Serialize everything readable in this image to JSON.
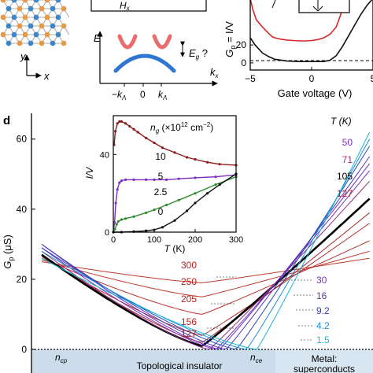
{
  "panels": {
    "lattice": {
      "y_axis_label": "y",
      "x_axis_label": "x"
    },
    "band": {
      "top_box_text": "H",
      "top_box_subscript": "x",
      "energy_label": "E",
      "gap_label": "E",
      "gap_subscript": "g",
      "gap_suffix": " ?",
      "k_label": "k",
      "k_subscript": "x",
      "tick_neg": "−k",
      "tick_zero": "0",
      "tick_pos": "k",
      "tick_subscript": "Λ"
    }
  },
  "colors": {
    "lattice_orange": "#e69a45",
    "lattice_blue": "#3d86c9",
    "band_red": "#e86c6c",
    "band_blue": "#2f76d2",
    "metal_region": "#d8e6f2",
    "insulator_region": "#cddcea"
  },
  "chart_data": [
    {
      "panel": "top-right",
      "type": "line",
      "xlabel": "Gate voltage (V)",
      "ylabel": "G",
      "ylabel_subscript": "p",
      "ylabel_suffix": " = I/V",
      "xlim": [
        -5,
        5
      ],
      "ylim": [
        -8,
        72
      ],
      "xticks": [
        -5,
        0,
        5
      ],
      "yticks": [
        0,
        20
      ],
      "reference_line": 0,
      "series": [
        {
          "color": "#d62728",
          "x": [
            -5,
            -4.8,
            -4.5,
            -4,
            -3.5,
            -3.2,
            -3,
            -2.5,
            -2,
            -1.5,
            -1,
            -0.5,
            0,
            0.5,
            1,
            1.5,
            2,
            2.4,
            2.8
          ],
          "y": [
            72,
            60,
            48,
            40,
            33,
            29,
            28,
            26.5,
            25.5,
            25,
            24.5,
            24.5,
            25,
            26,
            28,
            32,
            40,
            55,
            72
          ]
        },
        {
          "color": "#111111",
          "x": [
            -5,
            -4.6,
            -4,
            -3.5,
            -3,
            -2,
            -1,
            0,
            1,
            1.5,
            2,
            2.5,
            3,
            3.5,
            4,
            4.5,
            5
          ],
          "y": [
            28,
            20,
            11,
            7,
            4,
            2,
            1.5,
            1.5,
            1.5,
            3,
            8,
            18,
            30,
            42,
            54,
            64,
            72
          ]
        }
      ]
    },
    {
      "panel": "d",
      "type": "line",
      "panel_label": "d",
      "ylabel": "G",
      "ylabel_subscript": "p",
      "ylabel_unit": " (μS)",
      "xlim": [
        0,
        1
      ],
      "ylim": [
        0,
        66
      ],
      "yticks": [
        0,
        20,
        40,
        60
      ],
      "temperature_header": "T (K)",
      "high_T_labels": [
        {
          "text": "50",
          "color": "#7b2fbe"
        },
        {
          "text": "71",
          "color": "#9b2f7a"
        },
        {
          "text": "105",
          "color": "#000000"
        },
        {
          "text": "127",
          "color": "#b82626"
        }
      ],
      "mid_T_labels": [
        {
          "text": "300",
          "color": "#b82020"
        },
        {
          "text": "250",
          "color": "#b82020"
        },
        {
          "text": "205",
          "color": "#b82020"
        },
        {
          "text": "156",
          "color": "#b82020"
        },
        {
          "text": "127",
          "color": "#b82020"
        }
      ],
      "low_T_labels": [
        {
          "text": "30",
          "color": "#7b2fbe"
        },
        {
          "text": "16",
          "color": "#5a33b0"
        },
        {
          "text": "9.2",
          "color": "#2c3fb8"
        },
        {
          "text": "4.2",
          "color": "#1f8fd6"
        },
        {
          "text": "1.5",
          "color": "#19b6d6"
        }
      ],
      "region_labels": {
        "ncp": "n",
        "ncp_sub": "cp",
        "nce": "n",
        "nce_sub": "ce",
        "insulator": "Topological insulator",
        "metal_line1": "Metal:",
        "metal_line2": "superconducts"
      },
      "series": [
        {
          "name": "300",
          "color": "#c0392b",
          "min_x": 0.5,
          "min_y": 19,
          "left_y": 25,
          "right_y": 26,
          "width": 1
        },
        {
          "name": "250",
          "color": "#c0392b",
          "min_x": 0.5,
          "min_y": 15,
          "left_y": 25.5,
          "right_y": 28,
          "width": 1
        },
        {
          "name": "205",
          "color": "#b82d2d",
          "min_x": 0.5,
          "min_y": 10,
          "left_y": 26,
          "right_y": 31,
          "width": 1
        },
        {
          "name": "156",
          "color": "#b02a2a",
          "min_x": 0.5,
          "min_y": 4,
          "left_y": 26.5,
          "right_y": 36,
          "width": 1
        },
        {
          "name": "127",
          "color": "#a52828",
          "min_x": 0.5,
          "min_y": 2,
          "left_y": 27,
          "right_y": 39,
          "width": 1
        },
        {
          "name": "105",
          "color": "#000000",
          "min_x": 0.5,
          "min_y": 1,
          "left_y": 27,
          "right_y": 43,
          "width": 2.6
        },
        {
          "name": "71",
          "color": "#8e2f84",
          "min_x": 0.52,
          "min_y": 0,
          "left_y": 28,
          "right_y": 48,
          "width": 1
        },
        {
          "name": "50",
          "color": "#7b2fbe",
          "min_x": 0.54,
          "min_y": 0,
          "left_y": 29,
          "right_y": 51,
          "width": 1
        },
        {
          "name": "30",
          "color": "#6a30c0",
          "min_x": 0.55,
          "min_y": 0,
          "left_y": 30,
          "right_y": 53,
          "width": 1
        },
        {
          "name": "16",
          "color": "#4b3bb8",
          "min_x": 0.57,
          "min_y": 0,
          "left_y": 30,
          "right_y": 55,
          "width": 1
        },
        {
          "name": "9.2",
          "color": "#2c47b8",
          "min_x": 0.6,
          "min_y": 0,
          "left_y": 29,
          "right_y": 58,
          "width": 1
        },
        {
          "name": "4.2",
          "color": "#1f8fd6",
          "min_x": 0.63,
          "min_y": 0,
          "left_y": 28,
          "right_y": 60,
          "width": 1
        },
        {
          "name": "1.5",
          "color": "#19b6d6",
          "min_x": 0.66,
          "min_y": 0,
          "left_y": 26,
          "right_y": 62,
          "width": 1
        }
      ]
    },
    {
      "panel": "d-inset",
      "type": "line",
      "xlabel": "T",
      "xlabel_suffix": " (K)",
      "ylabel": "I/V",
      "legend_label_main": "n",
      "legend_label_sub": "g",
      "legend_label_unit": " (×10",
      "legend_label_exp1": "12",
      "legend_label_mid": " cm",
      "legend_label_exp2": "−2",
      "legend_label_end": ")",
      "xlim": [
        0,
        300
      ],
      "ylim": [
        0,
        60
      ],
      "xticks": [
        0,
        100,
        200,
        300
      ],
      "yticks": [
        0,
        40
      ],
      "series": [
        {
          "name": "10",
          "color": "#8b1a1a",
          "x": [
            2,
            5,
            10,
            15,
            20,
            30,
            40,
            50,
            60,
            80,
            100,
            120,
            150,
            180,
            200,
            230,
            260,
            300
          ],
          "y": [
            45,
            52,
            56,
            57,
            57,
            56,
            54.5,
            53,
            51.5,
            48.5,
            46,
            43.5,
            41,
            38.5,
            37.5,
            36,
            35,
            34.5
          ]
        },
        {
          "name": "5",
          "color": "#7b2fbe",
          "x": [
            0,
            3,
            6,
            10,
            15,
            20,
            30,
            50,
            80,
            100,
            130,
            160,
            200,
            250,
            300
          ],
          "y": [
            0,
            5,
            15,
            22,
            25.5,
            26.5,
            27,
            27,
            27,
            27,
            27,
            27.5,
            28,
            28.5,
            29.5
          ]
        },
        {
          "name": "2.5",
          "color": "#2e8b2e",
          "x": [
            0,
            4,
            8,
            12,
            20,
            30,
            50,
            80,
            100,
            130,
            160,
            200,
            250,
            300
          ],
          "y": [
            0,
            1.5,
            4,
            5.5,
            6.5,
            7,
            8,
            10,
            11.5,
            14,
            16.5,
            20,
            24.5,
            28.5
          ]
        },
        {
          "name": "0",
          "color": "#111111",
          "x": [
            0,
            20,
            50,
            80,
            100,
            120,
            150,
            180,
            200,
            230,
            260,
            300
          ],
          "y": [
            0,
            0,
            0.3,
            0.7,
            1.2,
            2.5,
            6,
            11,
            15,
            20,
            24.5,
            30
          ]
        }
      ]
    }
  ]
}
